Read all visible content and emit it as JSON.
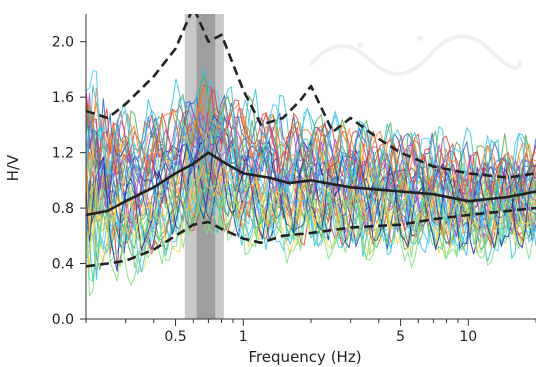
{
  "chart_data": {
    "type": "line",
    "xlabel": "Frequency (Hz)",
    "ylabel": "H/V",
    "x_scale": "log",
    "xlim": [
      0.2,
      20
    ],
    "ylim": [
      0.0,
      2.2
    ],
    "x_ticks": [
      0.5,
      1,
      5,
      10
    ],
    "x_tick_labels": [
      "0.5",
      "1",
      "5",
      "10"
    ],
    "y_ticks": [
      0.0,
      0.4,
      0.8,
      1.2,
      1.6,
      2.0
    ],
    "y_tick_labels": [
      "0.0",
      "0.4",
      "0.8",
      "1.2",
      "1.6",
      "2.0"
    ],
    "shaded_band": {
      "x_from": 0.55,
      "x_to": 0.82,
      "inner_x_from": 0.62,
      "inner_x_to": 0.75
    },
    "mean_curve": {
      "style": "solid",
      "color": "#222222",
      "x": [
        0.2,
        0.25,
        0.3,
        0.4,
        0.5,
        0.6,
        0.7,
        0.8,
        1.0,
        1.3,
        1.6,
        2.0,
        3.0,
        5.0,
        7.0,
        10.0,
        15.0,
        20.0
      ],
      "y": [
        0.75,
        0.78,
        0.85,
        0.95,
        1.05,
        1.12,
        1.2,
        1.14,
        1.05,
        1.02,
        0.98,
        1.0,
        0.95,
        0.92,
        0.9,
        0.85,
        0.88,
        0.92
      ]
    },
    "upper_curve": {
      "style": "dashed",
      "color": "#222222",
      "x": [
        0.2,
        0.25,
        0.3,
        0.4,
        0.5,
        0.6,
        0.65,
        0.7,
        0.8,
        1.0,
        1.2,
        1.5,
        1.8,
        2.0,
        2.5,
        3.0,
        4.0,
        5.0,
        7.0,
        10.0,
        15.0,
        20.0
      ],
      "y": [
        1.5,
        1.45,
        1.55,
        1.75,
        1.95,
        2.25,
        2.12,
        2.0,
        2.05,
        1.65,
        1.4,
        1.45,
        1.58,
        1.68,
        1.35,
        1.45,
        1.3,
        1.2,
        1.1,
        1.05,
        1.02,
        1.05
      ]
    },
    "lower_curve": {
      "style": "dashed",
      "color": "#222222",
      "x": [
        0.2,
        0.25,
        0.3,
        0.4,
        0.5,
        0.6,
        0.7,
        0.8,
        1.0,
        1.2,
        1.5,
        2.0,
        3.0,
        5.0,
        7.0,
        10.0,
        15.0,
        20.0
      ],
      "y": [
        0.38,
        0.4,
        0.42,
        0.5,
        0.6,
        0.68,
        0.7,
        0.65,
        0.58,
        0.55,
        0.6,
        0.62,
        0.66,
        0.68,
        0.72,
        0.75,
        0.78,
        0.8
      ]
    },
    "individual_curve_colors": [
      "#ff7f2a",
      "#ffd23f",
      "#7ee07e",
      "#3cc7ff",
      "#2a5fd6",
      "#1f2f9e",
      "#b04ad0",
      "#e53935",
      "#4caf50",
      "#26c6da"
    ]
  }
}
